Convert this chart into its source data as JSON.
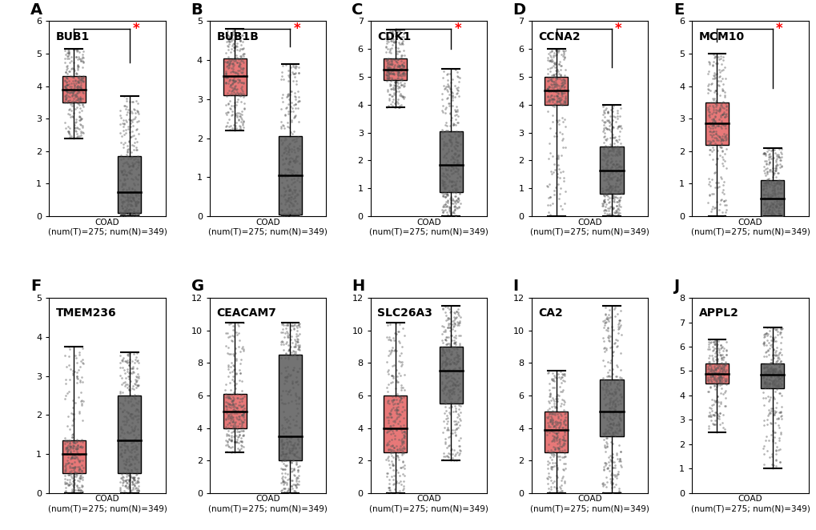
{
  "panels": [
    {
      "label": "A",
      "gene": "BUB1",
      "significant": true,
      "tumor": {
        "median": 3.9,
        "q1": 3.5,
        "q3": 4.3,
        "whisker_low": 2.4,
        "whisker_high": 5.15,
        "ylim": [
          0,
          6
        ]
      },
      "normal": {
        "median": 0.75,
        "q1": 0.1,
        "q3": 1.85,
        "whisker_low": 0.0,
        "whisker_high": 3.7,
        "ylim": [
          0,
          6
        ]
      }
    },
    {
      "label": "B",
      "gene": "BUB1B",
      "significant": true,
      "tumor": {
        "median": 3.6,
        "q1": 3.1,
        "q3": 4.05,
        "whisker_low": 2.2,
        "whisker_high": 4.8,
        "ylim": [
          0,
          5
        ]
      },
      "normal": {
        "median": 1.05,
        "q1": 0.05,
        "q3": 2.05,
        "whisker_low": 0.0,
        "whisker_high": 3.9,
        "ylim": [
          0,
          5
        ]
      }
    },
    {
      "label": "C",
      "gene": "CDK1",
      "significant": true,
      "tumor": {
        "median": 5.25,
        "q1": 4.9,
        "q3": 5.65,
        "whisker_low": 3.9,
        "whisker_high": 6.7,
        "ylim": [
          0,
          7
        ]
      },
      "normal": {
        "median": 1.85,
        "q1": 0.85,
        "q3": 3.05,
        "whisker_low": 0.0,
        "whisker_high": 5.3,
        "ylim": [
          0,
          7
        ]
      }
    },
    {
      "label": "D",
      "gene": "CCNA2",
      "significant": true,
      "tumor": {
        "median": 4.5,
        "q1": 4.0,
        "q3": 5.0,
        "whisker_low": 0.0,
        "whisker_high": 6.0,
        "ylim": [
          0,
          7
        ]
      },
      "normal": {
        "median": 1.65,
        "q1": 0.8,
        "q3": 2.5,
        "whisker_low": 0.0,
        "whisker_high": 4.0,
        "ylim": [
          0,
          7
        ]
      }
    },
    {
      "label": "E",
      "gene": "MCM10",
      "significant": true,
      "tumor": {
        "median": 2.85,
        "q1": 2.2,
        "q3": 3.5,
        "whisker_low": 0.0,
        "whisker_high": 5.0,
        "ylim": [
          0,
          6
        ]
      },
      "normal": {
        "median": 0.55,
        "q1": 0.0,
        "q3": 1.1,
        "whisker_low": 0.0,
        "whisker_high": 2.1,
        "ylim": [
          0,
          6
        ]
      }
    },
    {
      "label": "F",
      "gene": "TMEM236",
      "significant": false,
      "tumor": {
        "median": 1.0,
        "q1": 0.5,
        "q3": 1.35,
        "whisker_low": 0.0,
        "whisker_high": 3.75,
        "ylim": [
          0,
          5
        ]
      },
      "normal": {
        "median": 1.35,
        "q1": 0.5,
        "q3": 2.5,
        "whisker_low": 0.0,
        "whisker_high": 3.6,
        "ylim": [
          0,
          5
        ]
      }
    },
    {
      "label": "G",
      "gene": "CEACAM7",
      "significant": false,
      "tumor": {
        "median": 5.0,
        "q1": 4.0,
        "q3": 6.1,
        "whisker_low": 2.5,
        "whisker_high": 10.5,
        "ylim": [
          0,
          12
        ]
      },
      "normal": {
        "median": 3.5,
        "q1": 2.0,
        "q3": 8.5,
        "whisker_low": 0.0,
        "whisker_high": 10.5,
        "ylim": [
          0,
          12
        ]
      }
    },
    {
      "label": "H",
      "gene": "SLC26A3",
      "significant": false,
      "tumor": {
        "median": 4.0,
        "q1": 2.5,
        "q3": 6.0,
        "whisker_low": 0.0,
        "whisker_high": 10.5,
        "ylim": [
          0,
          12
        ]
      },
      "normal": {
        "median": 7.5,
        "q1": 5.5,
        "q3": 9.0,
        "whisker_low": 2.0,
        "whisker_high": 11.5,
        "ylim": [
          0,
          12
        ]
      }
    },
    {
      "label": "I",
      "gene": "CA2",
      "significant": false,
      "tumor": {
        "median": 3.9,
        "q1": 2.5,
        "q3": 5.0,
        "whisker_low": 0.0,
        "whisker_high": 7.5,
        "ylim": [
          0,
          12
        ]
      },
      "normal": {
        "median": 5.0,
        "q1": 3.5,
        "q3": 7.0,
        "whisker_low": 0.0,
        "whisker_high": 11.5,
        "ylim": [
          0,
          12
        ]
      }
    },
    {
      "label": "J",
      "gene": "APPL2",
      "significant": false,
      "tumor": {
        "median": 4.9,
        "q1": 4.5,
        "q3": 5.3,
        "whisker_low": 2.5,
        "whisker_high": 6.3,
        "ylim": [
          0,
          8
        ]
      },
      "normal": {
        "median": 4.85,
        "q1": 4.3,
        "q3": 5.3,
        "whisker_low": 1.0,
        "whisker_high": 6.8,
        "ylim": [
          0,
          8
        ]
      }
    }
  ],
  "tumor_color": "#E87878",
  "normal_color": "#737373",
  "xlabel_main": "COAD",
  "xlabel_sub": "(num(T)=275; num(N)=349)",
  "dot_alpha": 0.45,
  "dot_size": 3.5
}
